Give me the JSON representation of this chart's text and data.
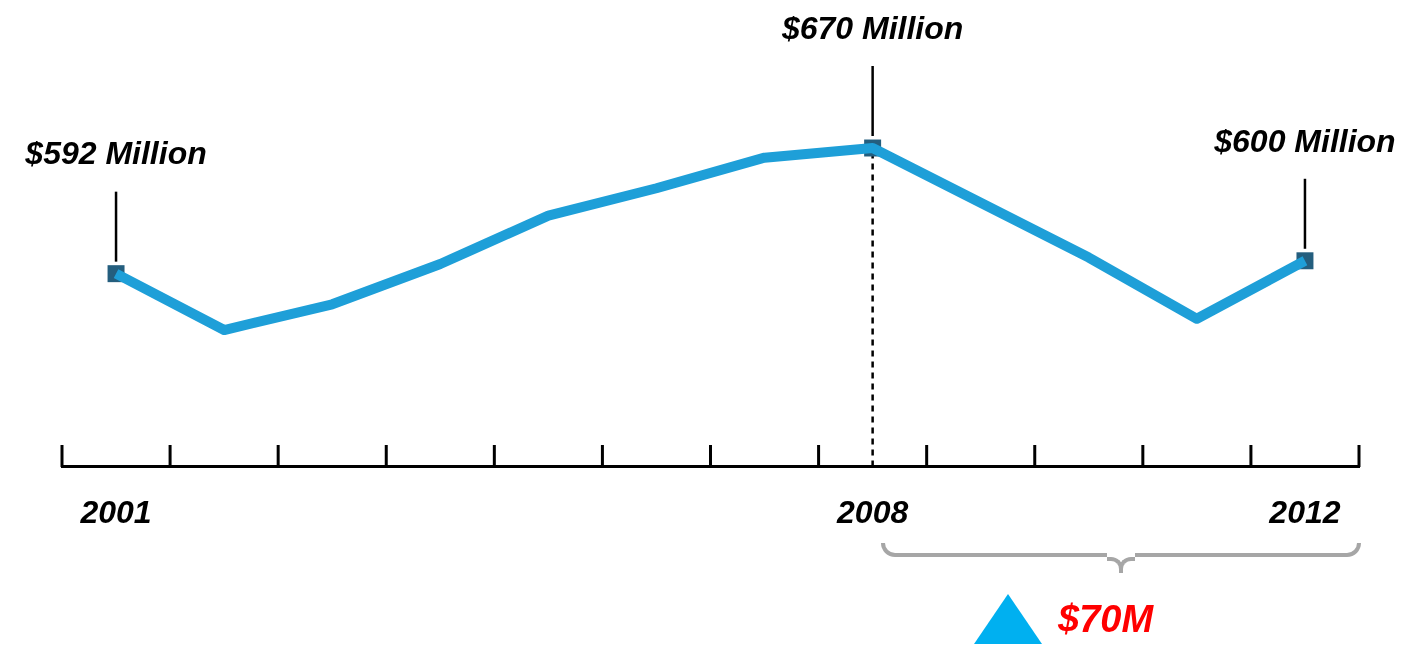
{
  "chart_data": {
    "type": "line",
    "categories": [
      "2001",
      null,
      null,
      null,
      null,
      null,
      null,
      "2008",
      null,
      null,
      null,
      "2012"
    ],
    "tick_labels": "x",
    "series": [
      {
        "color": "#1e9fd8",
        "values": [
          592,
          557,
          573,
          598,
          628,
          645,
          664,
          670,
          636,
          602,
          564,
          600
        ]
      },
      {
        "type": "scatter",
        "color": "#245e7e",
        "values": [
          592,
          null,
          null,
          null,
          null,
          null,
          null,
          670,
          null,
          null,
          null,
          600
        ],
        "marker": "square",
        "value_labels": [
          "$592 Million",
          null,
          null,
          null,
          null,
          null,
          null,
          "$670 Million",
          null,
          null,
          null,
          "$600 Million"
        ]
      }
    ],
    "marker": "none",
    "grid": false,
    "legend": false,
    "ref_lines": [
      {
        "axis": "x",
        "value": "2008",
        "line_style": "dashed",
        "color": "#000000"
      }
    ],
    "annotations": [
      "$70M"
    ]
  }
}
